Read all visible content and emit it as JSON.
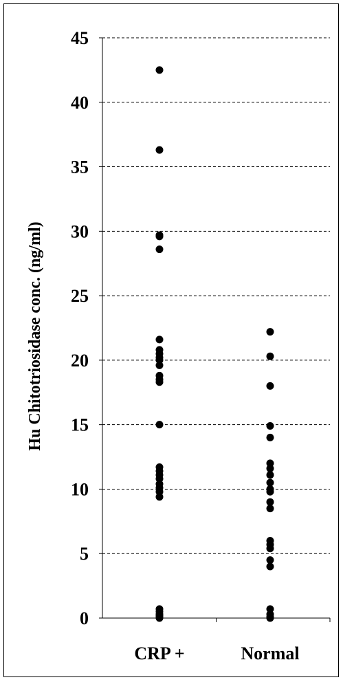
{
  "chart_data": {
    "type": "scatter",
    "ylabel": "Hu Chitotriosidase conc. (ng/ml)",
    "xlabel": "",
    "ylim": [
      0,
      45
    ],
    "yticks": [
      "0",
      "5",
      "10",
      "15",
      "20",
      "25",
      "30",
      "35",
      "40",
      "45"
    ],
    "categories": [
      "CRP +",
      "Normal"
    ],
    "grid": "horizontal dashed",
    "marker_color": "#000000",
    "series": [
      {
        "category": "CRP +",
        "values": [
          42.5,
          36.3,
          29.7,
          29.6,
          28.6,
          21.6,
          20.8,
          20.5,
          20.2,
          20.0,
          19.6,
          18.8,
          18.5,
          18.3,
          15.0,
          11.7,
          11.4,
          11.1,
          10.8,
          10.4,
          10.1,
          9.8,
          9.4,
          0.7,
          0.5,
          0.3,
          0.2,
          0.1,
          0.0
        ]
      },
      {
        "category": "Normal",
        "values": [
          22.2,
          20.3,
          18.0,
          14.9,
          14.0,
          12.0,
          11.6,
          11.1,
          10.5,
          10.0,
          9.8,
          9.0,
          8.5,
          6.0,
          5.7,
          5.4,
          4.5,
          4.0,
          0.7,
          0.3,
          0.1,
          0.0
        ]
      }
    ]
  }
}
